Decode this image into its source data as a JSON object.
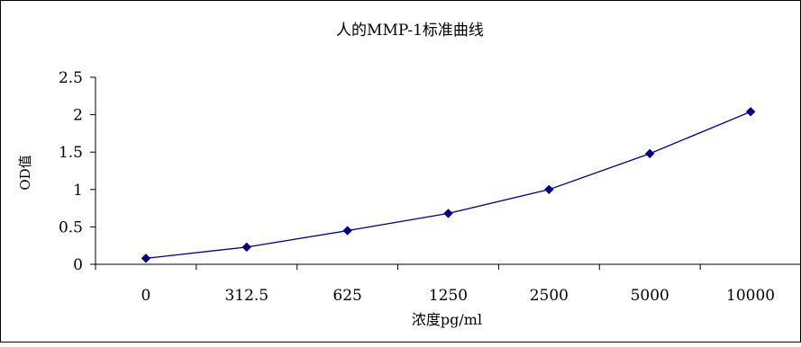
{
  "chart_data": {
    "type": "line",
    "title": "人的MMP-1标准曲线",
    "xlabel": "浓度pg/ml",
    "ylabel": "OD值",
    "categories": [
      "0",
      "312.5",
      "625",
      "1250",
      "2500",
      "5000",
      "10000"
    ],
    "series": [
      {
        "values": [
          0.08,
          0.23,
          0.45,
          0.68,
          1.0,
          1.48,
          2.04
        ]
      }
    ],
    "ylim": [
      0,
      2.5
    ],
    "yticks": [
      "0",
      "0.5",
      "1",
      "1.5",
      "2",
      "2.5"
    ],
    "grid": false,
    "legend": "none",
    "line_color": "#000080",
    "marker": "diamond"
  }
}
